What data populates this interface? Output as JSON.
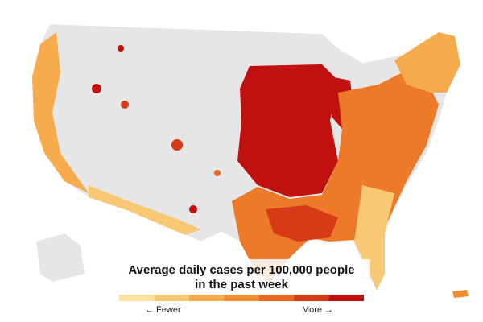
{
  "legend": {
    "title": [
      "Average daily cases per 100,000 people",
      "in the past week"
    ],
    "low_label": "← Fewer",
    "high_label": "More →",
    "colors": [
      "#fbe2a0",
      "#f9c874",
      "#f6ab4c",
      "#f18d33",
      "#e8661f",
      "#d63a16",
      "#c01010"
    ]
  }
}
